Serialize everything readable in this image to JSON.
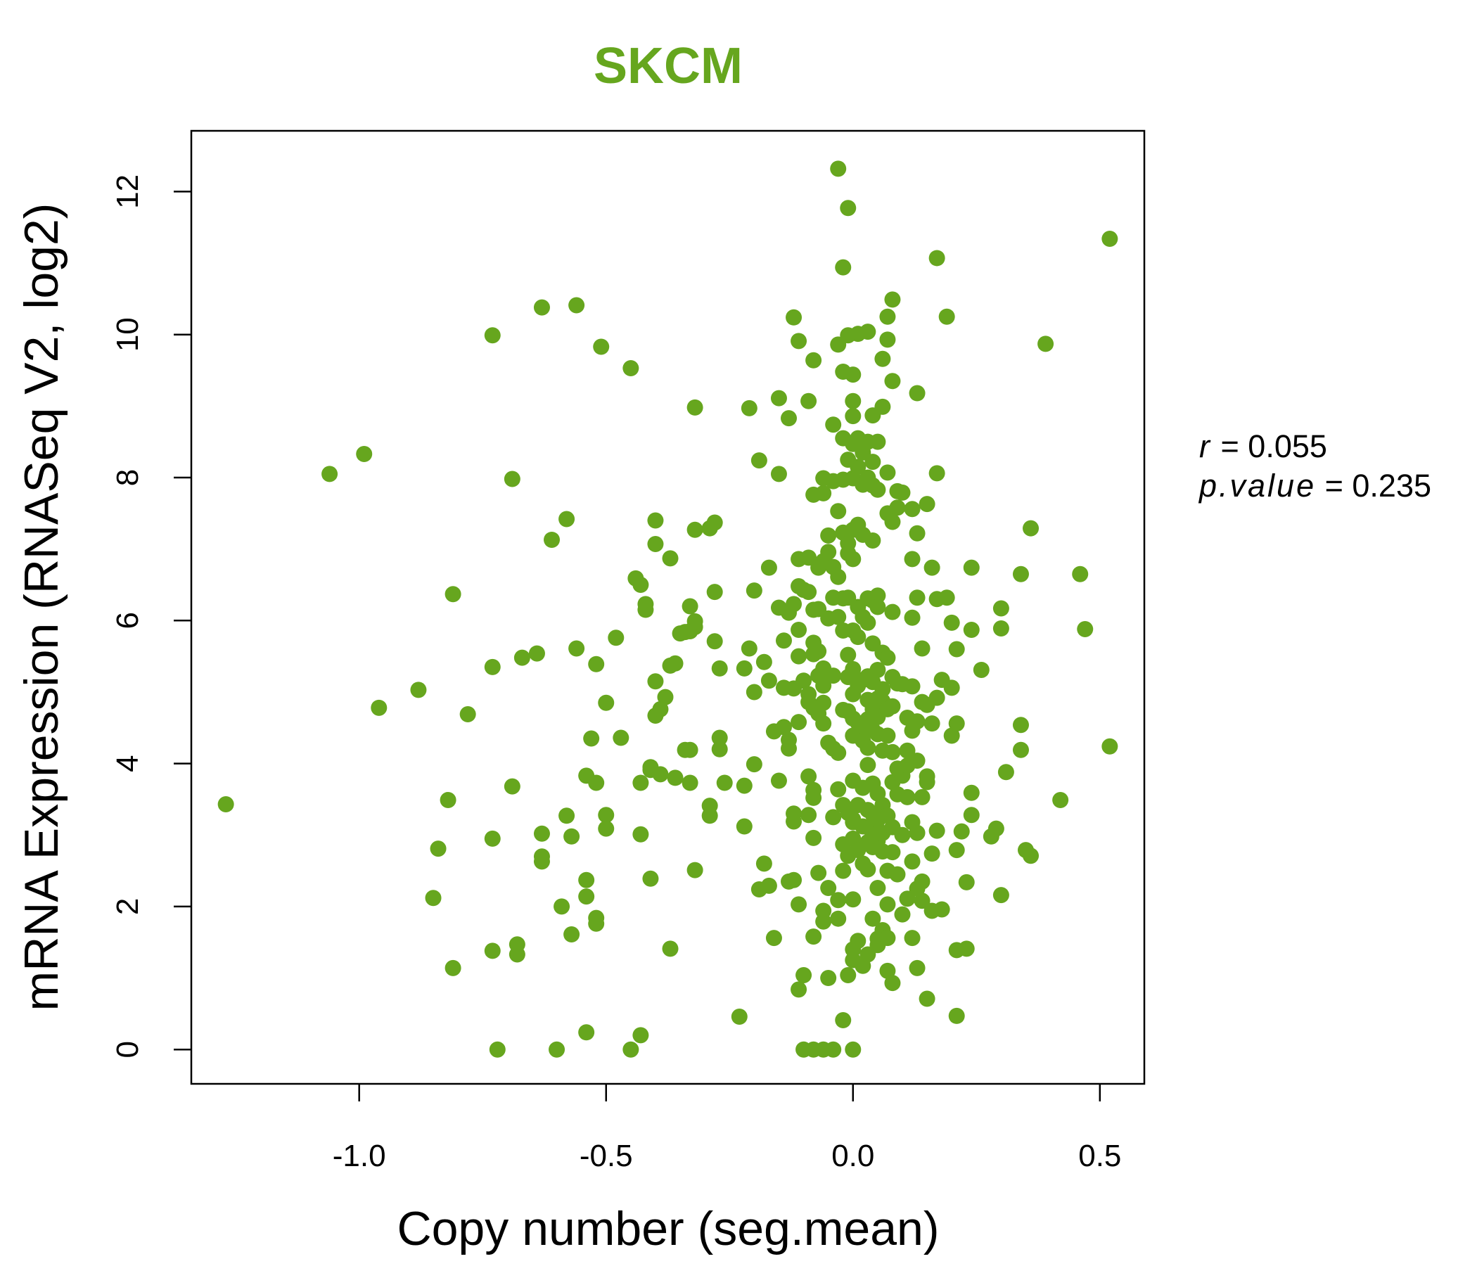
{
  "chart_data": {
    "type": "scatter",
    "title": "SKCM",
    "xlabel": "Copy number (seg.mean)",
    "ylabel": "mRNA Expression (RNASeq V2, log2)",
    "xlim": [
      -1.34,
      0.59
    ],
    "ylim": [
      -0.48,
      12.85
    ],
    "x_ticks": [
      -1.0,
      -0.5,
      0.0,
      0.5
    ],
    "x_tick_labels": [
      "-1.0",
      "-0.5",
      "0.0",
      "0.5"
    ],
    "y_ticks": [
      0,
      2,
      4,
      6,
      8,
      10,
      12
    ],
    "y_tick_labels": [
      "0",
      "2",
      "4",
      "6",
      "8",
      "10",
      "12"
    ],
    "grid": false,
    "point_color": "#66a61e",
    "stats": {
      "r_label": "r",
      "r_value": "0.055",
      "p_label": "p.value",
      "p_value": "0.235"
    },
    "points": [
      [
        -1.27,
        3.43
      ],
      [
        -1.06,
        8.05
      ],
      [
        -0.99,
        8.33
      ],
      [
        -0.96,
        4.78
      ],
      [
        -0.88,
        5.03
      ],
      [
        -0.85,
        2.12
      ],
      [
        -0.84,
        2.81
      ],
      [
        -0.82,
        3.49
      ],
      [
        -0.81,
        6.37
      ],
      [
        -0.81,
        1.14
      ],
      [
        -0.78,
        4.69
      ],
      [
        -0.73,
        9.99
      ],
      [
        -0.73,
        5.35
      ],
      [
        -0.73,
        2.95
      ],
      [
        -0.73,
        1.38
      ],
      [
        -0.72,
        0.0
      ],
      [
        -0.69,
        7.98
      ],
      [
        -0.69,
        3.68
      ],
      [
        -0.68,
        1.47
      ],
      [
        -0.68,
        1.33
      ],
      [
        -0.67,
        5.48
      ],
      [
        -0.64,
        5.54
      ],
      [
        -0.63,
        10.38
      ],
      [
        -0.63,
        3.02
      ],
      [
        -0.63,
        2.7
      ],
      [
        -0.63,
        2.63
      ],
      [
        -0.61,
        7.13
      ],
      [
        -0.6,
        0.0
      ],
      [
        -0.59,
        2.0
      ],
      [
        -0.58,
        7.42
      ],
      [
        -0.58,
        3.27
      ],
      [
        -0.57,
        2.98
      ],
      [
        -0.57,
        1.61
      ],
      [
        -0.56,
        10.41
      ],
      [
        -0.56,
        5.61
      ],
      [
        -0.54,
        3.83
      ],
      [
        -0.54,
        2.37
      ],
      [
        -0.54,
        2.14
      ],
      [
        -0.54,
        0.24
      ],
      [
        -0.53,
        4.35
      ],
      [
        -0.52,
        5.39
      ],
      [
        -0.52,
        3.73
      ],
      [
        -0.52,
        1.84
      ],
      [
        -0.52,
        1.76
      ],
      [
        -0.51,
        9.83
      ],
      [
        -0.5,
        4.85
      ],
      [
        -0.5,
        3.28
      ],
      [
        -0.5,
        3.09
      ],
      [
        -0.48,
        5.76
      ],
      [
        -0.47,
        4.36
      ],
      [
        -0.45,
        9.53
      ],
      [
        -0.45,
        0.0
      ],
      [
        -0.44,
        6.59
      ],
      [
        -0.43,
        6.5
      ],
      [
        -0.43,
        3.73
      ],
      [
        -0.43,
        3.01
      ],
      [
        -0.43,
        0.2
      ],
      [
        -0.42,
        6.23
      ],
      [
        -0.42,
        6.15
      ],
      [
        -0.41,
        3.95
      ],
      [
        -0.41,
        3.91
      ],
      [
        -0.41,
        2.39
      ],
      [
        -0.4,
        7.4
      ],
      [
        -0.4,
        7.07
      ],
      [
        -0.4,
        4.67
      ],
      [
        -0.4,
        5.15
      ],
      [
        -0.39,
        4.76
      ],
      [
        -0.39,
        3.85
      ],
      [
        -0.38,
        4.93
      ],
      [
        -0.37,
        5.37
      ],
      [
        -0.37,
        6.87
      ],
      [
        -0.37,
        1.41
      ],
      [
        -0.36,
        5.4
      ],
      [
        -0.36,
        3.8
      ],
      [
        -0.35,
        5.82
      ],
      [
        -0.34,
        4.19
      ],
      [
        -0.34,
        5.84
      ],
      [
        -0.33,
        4.19
      ],
      [
        -0.33,
        5.85
      ],
      [
        -0.33,
        3.73
      ],
      [
        -0.33,
        6.2
      ],
      [
        -0.32,
        7.27
      ],
      [
        -0.32,
        5.91
      ],
      [
        -0.32,
        5.99
      ],
      [
        -0.32,
        8.98
      ],
      [
        -0.32,
        2.51
      ],
      [
        -0.29,
        3.27
      ],
      [
        -0.29,
        3.41
      ],
      [
        -0.29,
        7.29
      ],
      [
        -0.28,
        7.37
      ],
      [
        -0.28,
        5.71
      ],
      [
        -0.28,
        6.4
      ],
      [
        -0.27,
        4.36
      ],
      [
        -0.27,
        4.2
      ],
      [
        -0.27,
        5.33
      ],
      [
        -0.26,
        3.73
      ],
      [
        -0.23,
        0.46
      ],
      [
        -0.22,
        3.69
      ],
      [
        -0.22,
        3.12
      ],
      [
        -0.22,
        5.33
      ],
      [
        -0.21,
        8.97
      ],
      [
        -0.21,
        5.61
      ],
      [
        -0.2,
        6.42
      ],
      [
        -0.2,
        5.0
      ],
      [
        -0.2,
        3.99
      ],
      [
        -0.19,
        8.24
      ],
      [
        -0.19,
        2.24
      ],
      [
        -0.18,
        2.6
      ],
      [
        -0.18,
        5.42
      ],
      [
        -0.17,
        6.74
      ],
      [
        -0.17,
        5.16
      ],
      [
        -0.17,
        2.29
      ],
      [
        -0.16,
        1.56
      ],
      [
        -0.16,
        4.45
      ],
      [
        -0.15,
        9.11
      ],
      [
        -0.15,
        8.05
      ],
      [
        -0.15,
        3.76
      ],
      [
        -0.15,
        6.18
      ],
      [
        -0.14,
        5.06
      ],
      [
        -0.14,
        5.72
      ],
      [
        -0.14,
        4.51
      ],
      [
        -0.13,
        8.83
      ],
      [
        -0.13,
        4.21
      ],
      [
        -0.13,
        4.33
      ],
      [
        -0.13,
        2.35
      ],
      [
        -0.13,
        6.11
      ],
      [
        -0.12,
        3.3
      ],
      [
        -0.12,
        3.19
      ],
      [
        -0.12,
        6.23
      ],
      [
        -0.12,
        5.05
      ],
      [
        -0.12,
        2.37
      ],
      [
        -0.12,
        10.24
      ],
      [
        -0.11,
        5.5
      ],
      [
        -0.11,
        4.58
      ],
      [
        -0.11,
        9.91
      ],
      [
        -0.11,
        6.86
      ],
      [
        -0.11,
        6.48
      ],
      [
        -0.11,
        5.87
      ],
      [
        -0.11,
        2.03
      ],
      [
        -0.11,
        0.84
      ],
      [
        -0.1,
        1.04
      ],
      [
        -0.1,
        6.43
      ],
      [
        -0.1,
        5.16
      ],
      [
        -0.1,
        0.0
      ],
      [
        -0.09,
        9.07
      ],
      [
        -0.09,
        6.88
      ],
      [
        -0.09,
        6.4
      ],
      [
        -0.09,
        4.97
      ],
      [
        -0.09,
        4.86
      ],
      [
        -0.09,
        3.82
      ],
      [
        -0.09,
        3.28
      ],
      [
        -0.08,
        0.0
      ],
      [
        -0.08,
        9.64
      ],
      [
        -0.08,
        7.76
      ],
      [
        -0.08,
        6.15
      ],
      [
        -0.08,
        5.69
      ],
      [
        -0.08,
        5.53
      ],
      [
        -0.08,
        4.78
      ],
      [
        -0.08,
        3.63
      ],
      [
        -0.08,
        3.52
      ],
      [
        -0.08,
        2.96
      ],
      [
        -0.08,
        1.58
      ],
      [
        -0.07,
        6.16
      ],
      [
        -0.07,
        6.74
      ],
      [
        -0.07,
        5.57
      ],
      [
        -0.07,
        5.23
      ],
      [
        -0.07,
        4.7
      ],
      [
        -0.07,
        2.47
      ],
      [
        -0.06,
        0.0
      ],
      [
        -0.06,
        7.99
      ],
      [
        -0.06,
        7.78
      ],
      [
        -0.06,
        6.83
      ],
      [
        -0.06,
        5.33
      ],
      [
        -0.06,
        5.09
      ],
      [
        -0.06,
        4.85
      ],
      [
        -0.06,
        4.56
      ],
      [
        -0.06,
        1.94
      ],
      [
        -0.06,
        1.79
      ],
      [
        -0.05,
        7.19
      ],
      [
        -0.05,
        6.96
      ],
      [
        -0.05,
        6.03
      ],
      [
        -0.05,
        4.29
      ],
      [
        -0.05,
        2.26
      ],
      [
        -0.05,
        1.0
      ],
      [
        -0.04,
        8.74
      ],
      [
        -0.04,
        7.95
      ],
      [
        -0.04,
        6.75
      ],
      [
        -0.04,
        6.32
      ],
      [
        -0.04,
        5.23
      ],
      [
        -0.04,
        4.21
      ],
      [
        -0.04,
        3.25
      ],
      [
        -0.04,
        0.0
      ],
      [
        -0.03,
        12.32
      ],
      [
        -0.03,
        9.86
      ],
      [
        -0.03,
        7.53
      ],
      [
        -0.03,
        6.61
      ],
      [
        -0.03,
        6.05
      ],
      [
        -0.03,
        4.15
      ],
      [
        -0.03,
        3.64
      ],
      [
        -0.03,
        2.09
      ],
      [
        -0.03,
        1.83
      ],
      [
        -0.02,
        10.94
      ],
      [
        -0.02,
        9.48
      ],
      [
        -0.02,
        8.55
      ],
      [
        -0.02,
        7.97
      ],
      [
        -0.02,
        7.23
      ],
      [
        -0.02,
        6.31
      ],
      [
        -0.02,
        5.86
      ],
      [
        -0.02,
        4.75
      ],
      [
        -0.02,
        3.42
      ],
      [
        -0.02,
        2.87
      ],
      [
        -0.02,
        2.5
      ],
      [
        -0.02,
        0.41
      ],
      [
        -0.01,
        11.77
      ],
      [
        -0.01,
        9.99
      ],
      [
        -0.01,
        8.25
      ],
      [
        -0.01,
        7.08
      ],
      [
        -0.01,
        6.94
      ],
      [
        -0.01,
        6.32
      ],
      [
        -0.01,
        5.52
      ],
      [
        -0.01,
        5.21
      ],
      [
        -0.01,
        4.73
      ],
      [
        -0.01,
        3.31
      ],
      [
        -0.01,
        2.71
      ],
      [
        -0.01,
        1.04
      ],
      [
        0.0,
        9.44
      ],
      [
        0.0,
        9.07
      ],
      [
        0.0,
        8.86
      ],
      [
        0.0,
        8.47
      ],
      [
        0.0,
        7.99
      ],
      [
        0.0,
        7.27
      ],
      [
        0.0,
        6.86
      ],
      [
        0.0,
        5.86
      ],
      [
        0.0,
        5.32
      ],
      [
        0.0,
        4.97
      ],
      [
        0.0,
        4.63
      ],
      [
        0.0,
        4.39
      ],
      [
        0.0,
        3.76
      ],
      [
        0.0,
        3.22
      ],
      [
        0.0,
        3.18
      ],
      [
        0.0,
        2.95
      ],
      [
        0.0,
        2.1
      ],
      [
        0.0,
        1.4
      ],
      [
        0.0,
        1.25
      ],
      [
        0.0,
        0.0
      ],
      [
        0.01,
        10.01
      ],
      [
        0.01,
        8.55
      ],
      [
        0.01,
        8.15
      ],
      [
        0.01,
        7.34
      ],
      [
        0.01,
        6.19
      ],
      [
        0.01,
        5.77
      ],
      [
        0.01,
        5.09
      ],
      [
        0.01,
        4.57
      ],
      [
        0.01,
        3.42
      ],
      [
        0.01,
        2.79
      ],
      [
        0.01,
        1.52
      ],
      [
        0.02,
        8.35
      ],
      [
        0.02,
        7.9
      ],
      [
        0.02,
        7.2
      ],
      [
        0.02,
        6.05
      ],
      [
        0.02,
        5.17
      ],
      [
        0.02,
        4.51
      ],
      [
        0.02,
        4.32
      ],
      [
        0.02,
        3.66
      ],
      [
        0.02,
        3.12
      ],
      [
        0.02,
        2.6
      ],
      [
        0.02,
        1.17
      ],
      [
        0.03,
        10.04
      ],
      [
        0.03,
        8.5
      ],
      [
        0.03,
        8.0
      ],
      [
        0.03,
        6.31
      ],
      [
        0.03,
        5.97
      ],
      [
        0.03,
        5.22
      ],
      [
        0.03,
        4.89
      ],
      [
        0.03,
        4.62
      ],
      [
        0.03,
        4.22
      ],
      [
        0.03,
        3.98
      ],
      [
        0.03,
        3.35
      ],
      [
        0.03,
        3.11
      ],
      [
        0.03,
        2.9
      ],
      [
        0.03,
        2.52
      ],
      [
        0.03,
        1.33
      ],
      [
        0.04,
        8.87
      ],
      [
        0.04,
        8.22
      ],
      [
        0.04,
        7.89
      ],
      [
        0.04,
        7.12
      ],
      [
        0.04,
        6.28
      ],
      [
        0.04,
        5.68
      ],
      [
        0.04,
        5.14
      ],
      [
        0.04,
        4.76
      ],
      [
        0.04,
        4.47
      ],
      [
        0.04,
        3.72
      ],
      [
        0.04,
        3.29
      ],
      [
        0.04,
        3.06
      ],
      [
        0.04,
        2.83
      ],
      [
        0.04,
        1.83
      ],
      [
        0.05,
        8.5
      ],
      [
        0.05,
        7.83
      ],
      [
        0.05,
        6.35
      ],
      [
        0.05,
        6.19
      ],
      [
        0.05,
        5.31
      ],
      [
        0.05,
        4.91
      ],
      [
        0.05,
        4.65
      ],
      [
        0.05,
        4.41
      ],
      [
        0.05,
        3.58
      ],
      [
        0.05,
        3.21
      ],
      [
        0.05,
        2.92
      ],
      [
        0.05,
        2.26
      ],
      [
        0.05,
        1.55
      ],
      [
        0.05,
        1.46
      ],
      [
        0.06,
        9.66
      ],
      [
        0.06,
        8.99
      ],
      [
        0.06,
        5.55
      ],
      [
        0.06,
        5.04
      ],
      [
        0.06,
        4.87
      ],
      [
        0.06,
        4.18
      ],
      [
        0.06,
        3.42
      ],
      [
        0.06,
        3.03
      ],
      [
        0.06,
        2.77
      ],
      [
        0.06,
        1.67
      ],
      [
        0.07,
        10.25
      ],
      [
        0.07,
        9.93
      ],
      [
        0.07,
        8.07
      ],
      [
        0.07,
        7.5
      ],
      [
        0.07,
        5.48
      ],
      [
        0.07,
        4.76
      ],
      [
        0.07,
        4.39
      ],
      [
        0.07,
        3.27
      ],
      [
        0.07,
        2.5
      ],
      [
        0.07,
        2.03
      ],
      [
        0.07,
        1.56
      ],
      [
        0.07,
        1.1
      ],
      [
        0.08,
        10.49
      ],
      [
        0.08,
        9.35
      ],
      [
        0.08,
        7.38
      ],
      [
        0.08,
        6.12
      ],
      [
        0.08,
        5.21
      ],
      [
        0.08,
        4.8
      ],
      [
        0.08,
        4.16
      ],
      [
        0.08,
        3.74
      ],
      [
        0.08,
        3.11
      ],
      [
        0.08,
        2.76
      ],
      [
        0.08,
        0.93
      ],
      [
        0.09,
        7.81
      ],
      [
        0.09,
        7.58
      ],
      [
        0.09,
        5.12
      ],
      [
        0.09,
        3.93
      ],
      [
        0.09,
        3.57
      ],
      [
        0.09,
        2.45
      ],
      [
        0.1,
        7.79
      ],
      [
        0.1,
        5.11
      ],
      [
        0.1,
        3.83
      ],
      [
        0.1,
        3.0
      ],
      [
        0.1,
        1.89
      ],
      [
        0.11,
        4.64
      ],
      [
        0.11,
        4.18
      ],
      [
        0.11,
        3.97
      ],
      [
        0.11,
        3.53
      ],
      [
        0.11,
        2.11
      ],
      [
        0.12,
        7.56
      ],
      [
        0.12,
        6.86
      ],
      [
        0.12,
        6.04
      ],
      [
        0.12,
        5.08
      ],
      [
        0.12,
        4.46
      ],
      [
        0.12,
        3.18
      ],
      [
        0.12,
        2.63
      ],
      [
        0.12,
        1.56
      ],
      [
        0.13,
        9.18
      ],
      [
        0.13,
        7.22
      ],
      [
        0.13,
        6.32
      ],
      [
        0.13,
        4.59
      ],
      [
        0.13,
        4.04
      ],
      [
        0.13,
        3.03
      ],
      [
        0.13,
        2.25
      ],
      [
        0.13,
        1.14
      ],
      [
        0.14,
        5.61
      ],
      [
        0.14,
        4.86
      ],
      [
        0.14,
        3.53
      ],
      [
        0.14,
        2.35
      ],
      [
        0.14,
        2.08
      ],
      [
        0.15,
        7.63
      ],
      [
        0.15,
        4.82
      ],
      [
        0.15,
        3.82
      ],
      [
        0.15,
        3.74
      ],
      [
        0.15,
        0.71
      ],
      [
        0.16,
        6.74
      ],
      [
        0.16,
        2.74
      ],
      [
        0.16,
        1.94
      ],
      [
        0.16,
        4.56
      ],
      [
        0.17,
        11.07
      ],
      [
        0.17,
        8.06
      ],
      [
        0.17,
        6.3
      ],
      [
        0.17,
        4.92
      ],
      [
        0.17,
        3.06
      ],
      [
        0.18,
        5.17
      ],
      [
        0.18,
        1.96
      ],
      [
        0.19,
        10.25
      ],
      [
        0.19,
        6.32
      ],
      [
        0.2,
        5.06
      ],
      [
        0.2,
        4.39
      ],
      [
        0.2,
        5.97
      ],
      [
        0.21,
        5.6
      ],
      [
        0.21,
        4.56
      ],
      [
        0.21,
        2.79
      ],
      [
        0.21,
        1.39
      ],
      [
        0.21,
        0.47
      ],
      [
        0.22,
        3.05
      ],
      [
        0.23,
        2.34
      ],
      [
        0.23,
        1.41
      ],
      [
        0.24,
        6.74
      ],
      [
        0.24,
        5.87
      ],
      [
        0.24,
        3.59
      ],
      [
        0.24,
        3.28
      ],
      [
        0.26,
        5.31
      ],
      [
        0.28,
        2.98
      ],
      [
        0.29,
        3.09
      ],
      [
        0.3,
        6.17
      ],
      [
        0.3,
        5.89
      ],
      [
        0.3,
        2.16
      ],
      [
        0.31,
        3.88
      ],
      [
        0.34,
        6.65
      ],
      [
        0.34,
        4.54
      ],
      [
        0.34,
        4.19
      ],
      [
        0.35,
        2.79
      ],
      [
        0.36,
        7.29
      ],
      [
        0.36,
        2.71
      ],
      [
        0.39,
        9.87
      ],
      [
        0.42,
        3.49
      ],
      [
        0.46,
        6.65
      ],
      [
        0.47,
        5.88
      ],
      [
        0.52,
        11.34
      ],
      [
        0.52,
        4.24
      ]
    ]
  }
}
